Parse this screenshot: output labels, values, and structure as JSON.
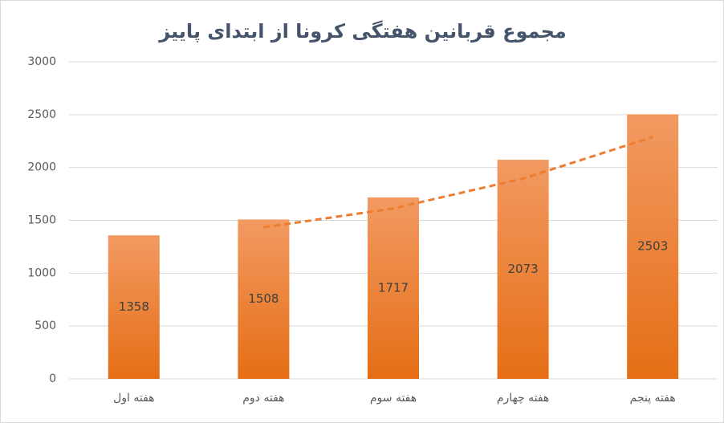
{
  "chart_data": {
    "type": "bar",
    "title": "مجموع قربانین هفتگی کرونا از ابتدای پاییز",
    "categories": [
      "هفته اول",
      "هفته دوم",
      "هفته سوم",
      "هفته چهارم",
      "هفته پنجم"
    ],
    "values": [
      1358,
      1508,
      1717,
      2073,
      2503
    ],
    "color": "#ed7d31",
    "trendline": {
      "values": [
        null,
        1433,
        1612.5,
        1895,
        2288
      ],
      "color": "#ed7d31"
    },
    "ylim": [
      0,
      3000
    ],
    "yticks": [
      0,
      500,
      1000,
      1500,
      2000,
      2500,
      3000
    ],
    "grid": true
  }
}
